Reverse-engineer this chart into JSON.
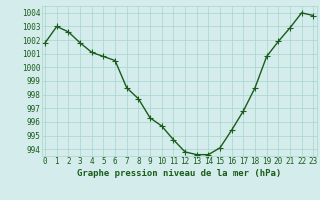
{
  "x": [
    0,
    1,
    2,
    3,
    4,
    5,
    6,
    7,
    8,
    9,
    10,
    11,
    12,
    13,
    14,
    15,
    16,
    17,
    18,
    19,
    20,
    21,
    22,
    23
  ],
  "y": [
    1001.8,
    1003.0,
    1002.6,
    1001.8,
    1001.1,
    1000.8,
    1000.5,
    998.5,
    997.7,
    996.3,
    995.7,
    994.7,
    993.8,
    993.6,
    993.6,
    994.1,
    995.4,
    996.8,
    998.5,
    1000.8,
    1001.9,
    1002.9,
    1004.0,
    1003.8
  ],
  "line_color": "#1a5c1a",
  "marker": "+",
  "marker_size": 4,
  "line_width": 1.0,
  "bg_color": "#d4edec",
  "grid_color": "#a8d4cf",
  "xlabel": "Graphe pression niveau de la mer (hPa)",
  "xlabel_fontsize": 6.5,
  "tick_fontsize": 5.5,
  "ylim": [
    993.5,
    1004.5
  ],
  "yticks": [
    994,
    995,
    996,
    997,
    998,
    999,
    1000,
    1001,
    1002,
    1003,
    1004
  ],
  "xticks": [
    0,
    1,
    2,
    3,
    4,
    5,
    6,
    7,
    8,
    9,
    10,
    11,
    12,
    13,
    14,
    15,
    16,
    17,
    18,
    19,
    20,
    21,
    22,
    23
  ],
  "xlim": [
    -0.3,
    23.3
  ]
}
